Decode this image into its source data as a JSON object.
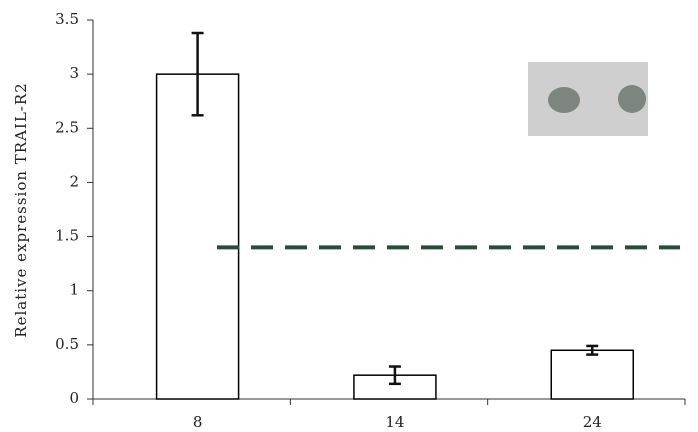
{
  "chart_data": {
    "type": "bar",
    "y_label": "Relative expression TRAIL-R2",
    "categories": [
      "8",
      "14",
      "24"
    ],
    "values": [
      3.0,
      0.22,
      0.45
    ],
    "errors": [
      0.38,
      0.08,
      0.04
    ],
    "color": "#ffffff",
    "edge_color": "#000000",
    "reference_line": 1.4,
    "reference_color": "#2a4a3a",
    "ylim": [
      0,
      3.5
    ],
    "yticks": [
      0,
      0.5,
      1,
      1.5,
      2,
      2.5,
      3,
      3.5
    ],
    "grid": false
  }
}
